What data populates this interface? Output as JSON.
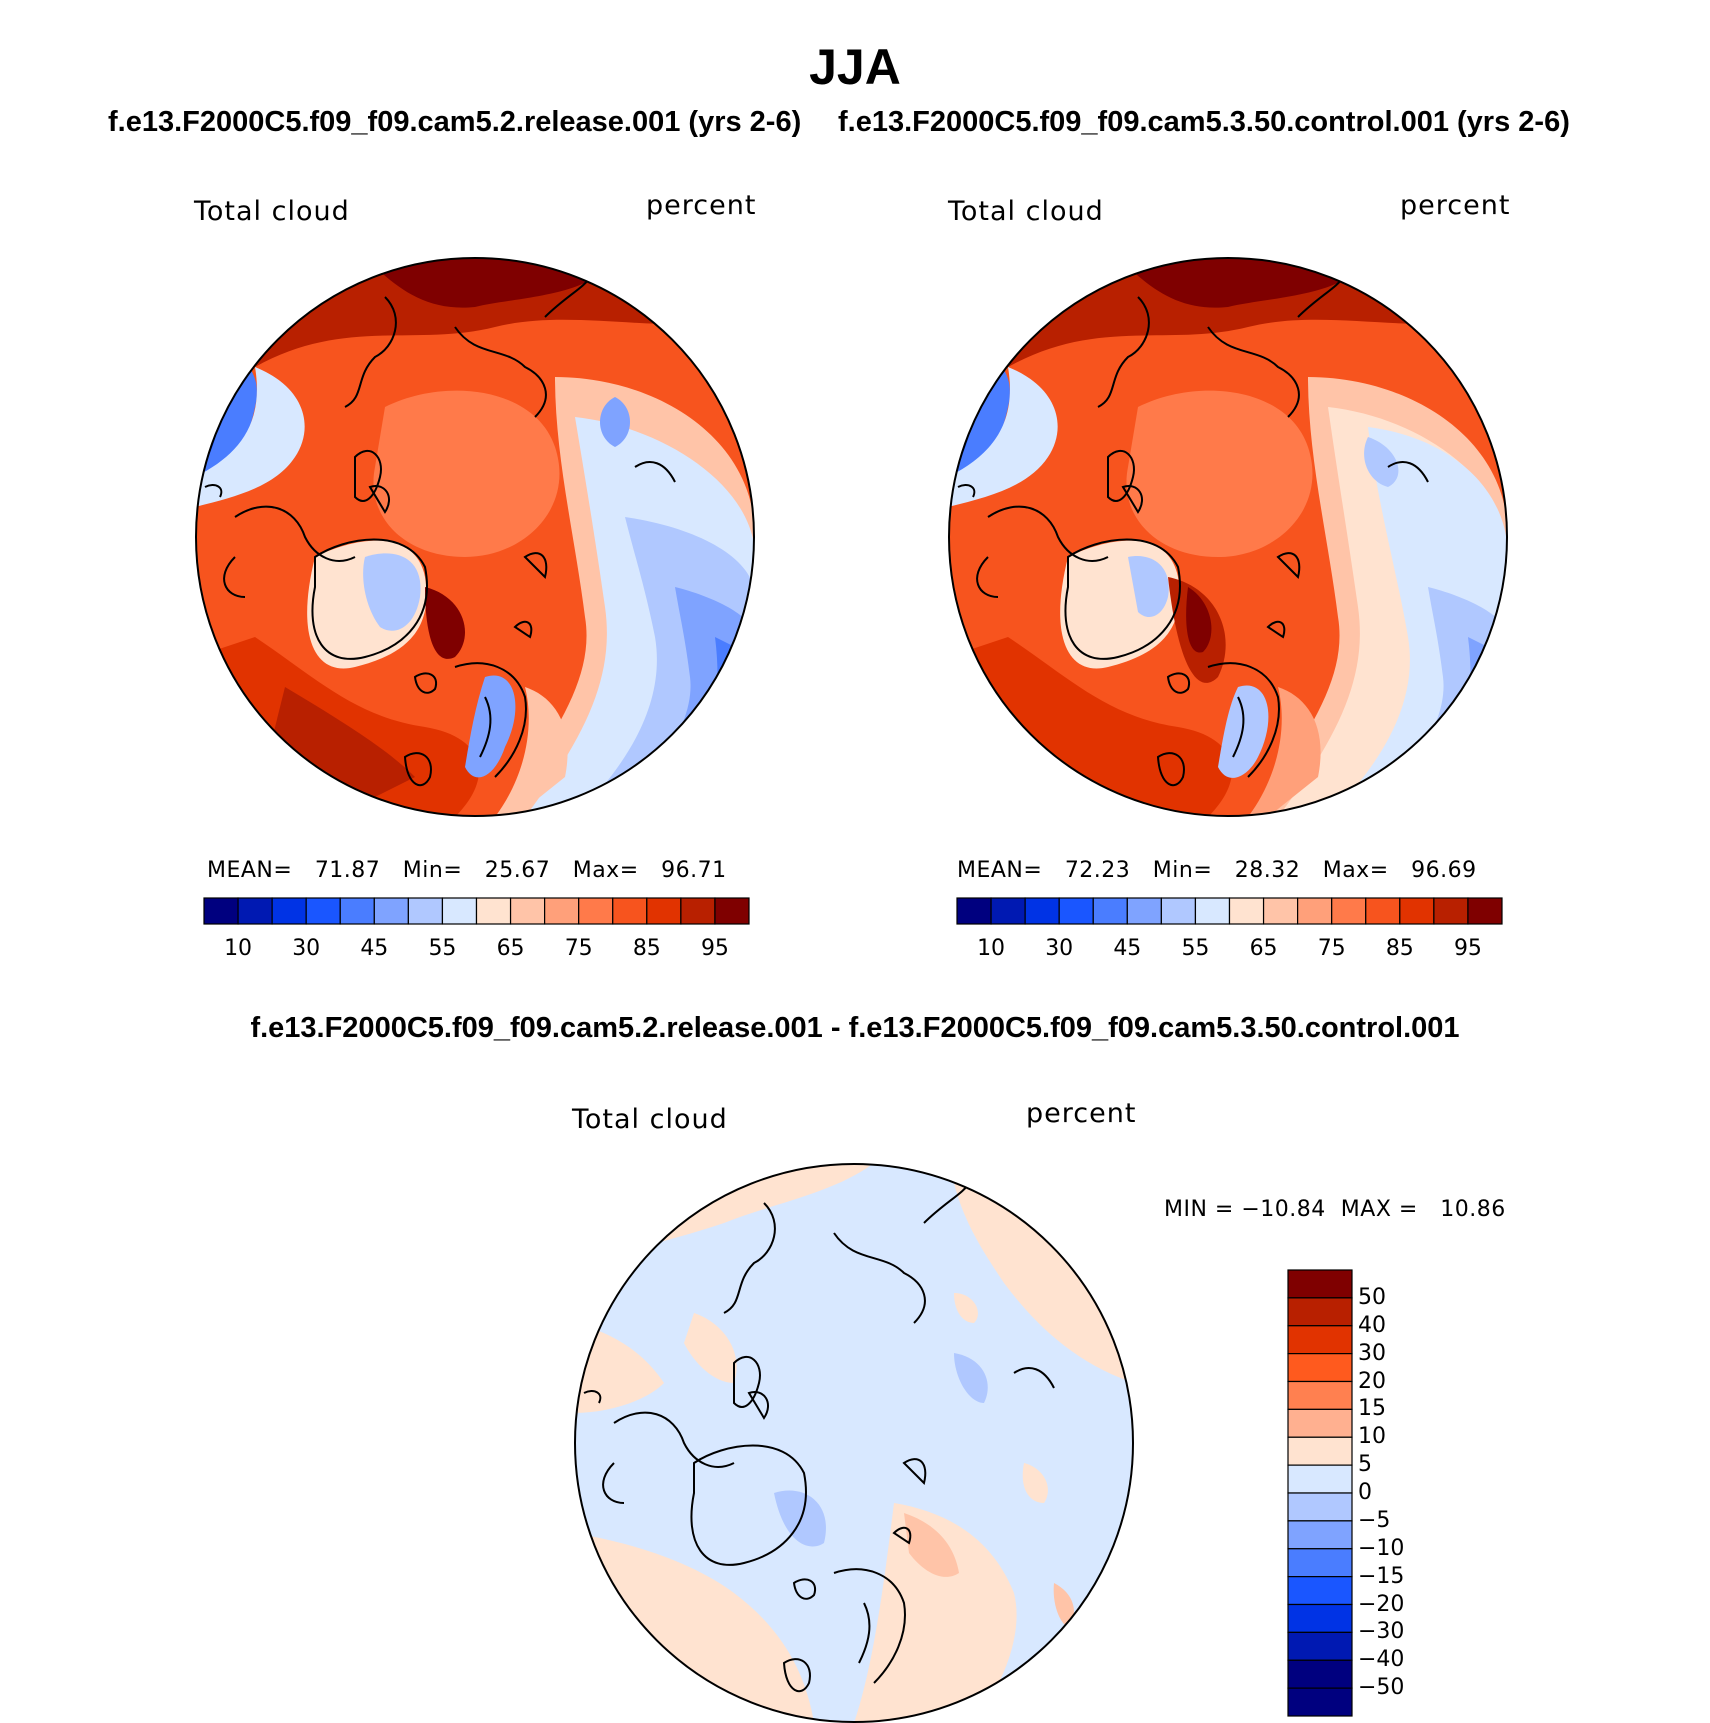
{
  "title": "JJA",
  "panels": [
    {
      "case": "f.e13.F2000C5.f09_f09.cam5.2.release.001 (yrs 2-6)",
      "variable": "Total cloud",
      "units": "percent",
      "stats": {
        "mean_label": "MEAN=",
        "mean": "71.87",
        "min_label": "Min=",
        "min": "25.67",
        "max_label": "Max=",
        "max": "96.71"
      }
    },
    {
      "case": "f.e13.F2000C5.f09_f09.cam5.3.50.control.001 (yrs 2-6)",
      "variable": "Total cloud",
      "units": "percent",
      "stats": {
        "mean_label": "MEAN=",
        "mean": "72.23",
        "min_label": "Min=",
        "min": "28.32",
        "max_label": "Max=",
        "max": "96.69"
      }
    }
  ],
  "abs_colorbar": {
    "colors": [
      "#00007f",
      "#0019b2",
      "#0033e5",
      "#1a56ff",
      "#4a7dff",
      "#7fa3ff",
      "#b0c8ff",
      "#d8e8ff",
      "#ffe3d0",
      "#ffc4a8",
      "#ffa07a",
      "#ff7a4a",
      "#f7541e",
      "#e13300",
      "#b82000",
      "#7f0000"
    ],
    "ticks": [
      "10",
      "30",
      "45",
      "55",
      "65",
      "75",
      "85",
      "95"
    ]
  },
  "difference": {
    "title": "f.e13.F2000C5.f09_f09.cam5.2.release.001 - f.e13.F2000C5.f09_f09.cam5.3.50.control.001",
    "variable": "Total cloud",
    "units": "percent",
    "min_label": "MIN =",
    "min": "−10.84",
    "max_label": "MAX =",
    "max": "10.86",
    "colorbar": {
      "colors": [
        "#7f0000",
        "#b82000",
        "#e13300",
        "#ff5a1e",
        "#ff8050",
        "#ffb090",
        "#ffe3d0",
        "#d8e8ff",
        "#b0c8ff",
        "#7fa3ff",
        "#4a7dff",
        "#1a56ff",
        "#0033e5",
        "#0019b2",
        "#00007f"
      ],
      "ticks": [
        "50",
        "40",
        "30",
        "20",
        "15",
        "10",
        "5",
        "0",
        "−5",
        "−10",
        "−15",
        "−20",
        "−30",
        "−40",
        "−50"
      ]
    }
  }
}
